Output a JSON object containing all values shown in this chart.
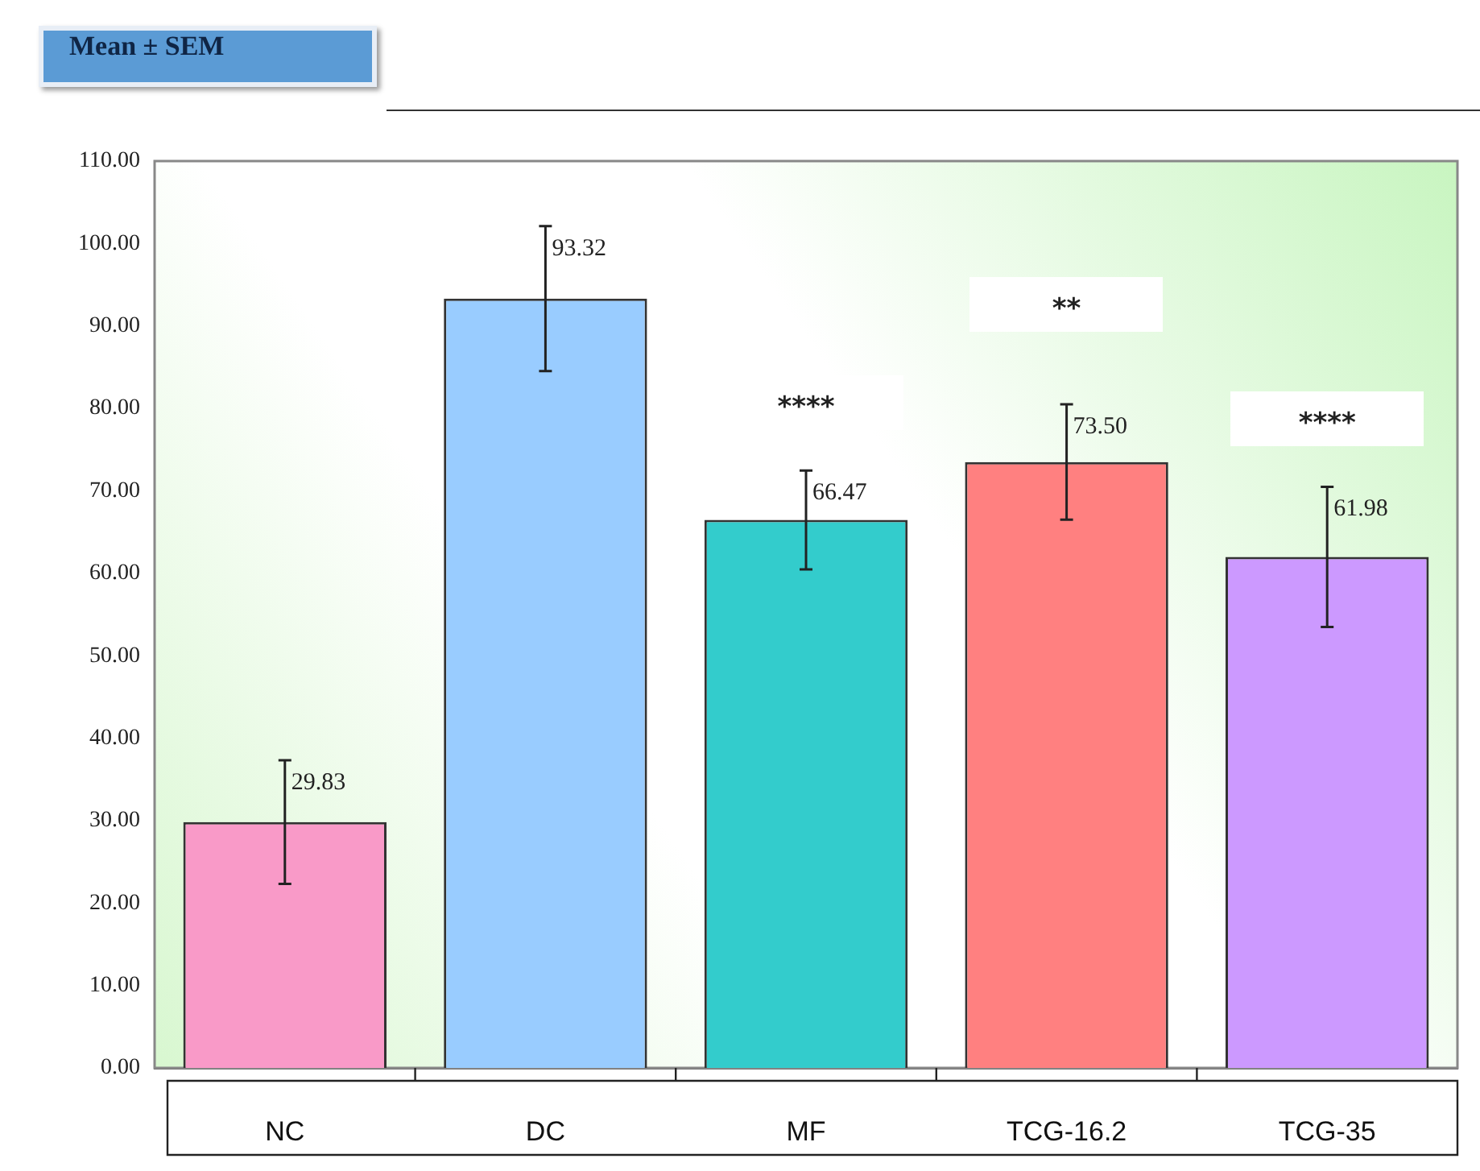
{
  "chart_data": {
    "type": "bar",
    "title": "Mean ± SEM",
    "categories": [
      "NC",
      "DC",
      "MF",
      "TCG-16.2",
      "TCG-35"
    ],
    "values": [
      29.83,
      93.32,
      66.47,
      73.5,
      61.98
    ],
    "colors": [
      "#f99ac8",
      "#99ccff",
      "#33cccc",
      "#ff8080",
      "#cc99ff"
    ],
    "errors": [
      7.5,
      8.8,
      6,
      7,
      8.5
    ],
    "value_labels": [
      "29.83",
      "93.32",
      "66.47",
      "73.50",
      "61.98"
    ],
    "ylim": [
      0,
      110
    ],
    "yticks": [
      {
        "value": 0,
        "label": "0.00"
      },
      {
        "value": 10,
        "label": "10.00"
      },
      {
        "value": 20,
        "label": "20.00"
      },
      {
        "value": 30,
        "label": "30.00"
      },
      {
        "value": 40,
        "label": "40.00"
      },
      {
        "value": 50,
        "label": "50.00"
      },
      {
        "value": 60,
        "label": "60.00"
      },
      {
        "value": 70,
        "label": "70.00"
      },
      {
        "value": 80,
        "label": "80.00"
      },
      {
        "value": 90,
        "label": "90.00"
      },
      {
        "value": 100,
        "label": "100.00"
      },
      {
        "value": 110,
        "label": "110.00"
      }
    ],
    "annotations": [
      "****",
      "**",
      "****"
    ],
    "legend": false
  }
}
